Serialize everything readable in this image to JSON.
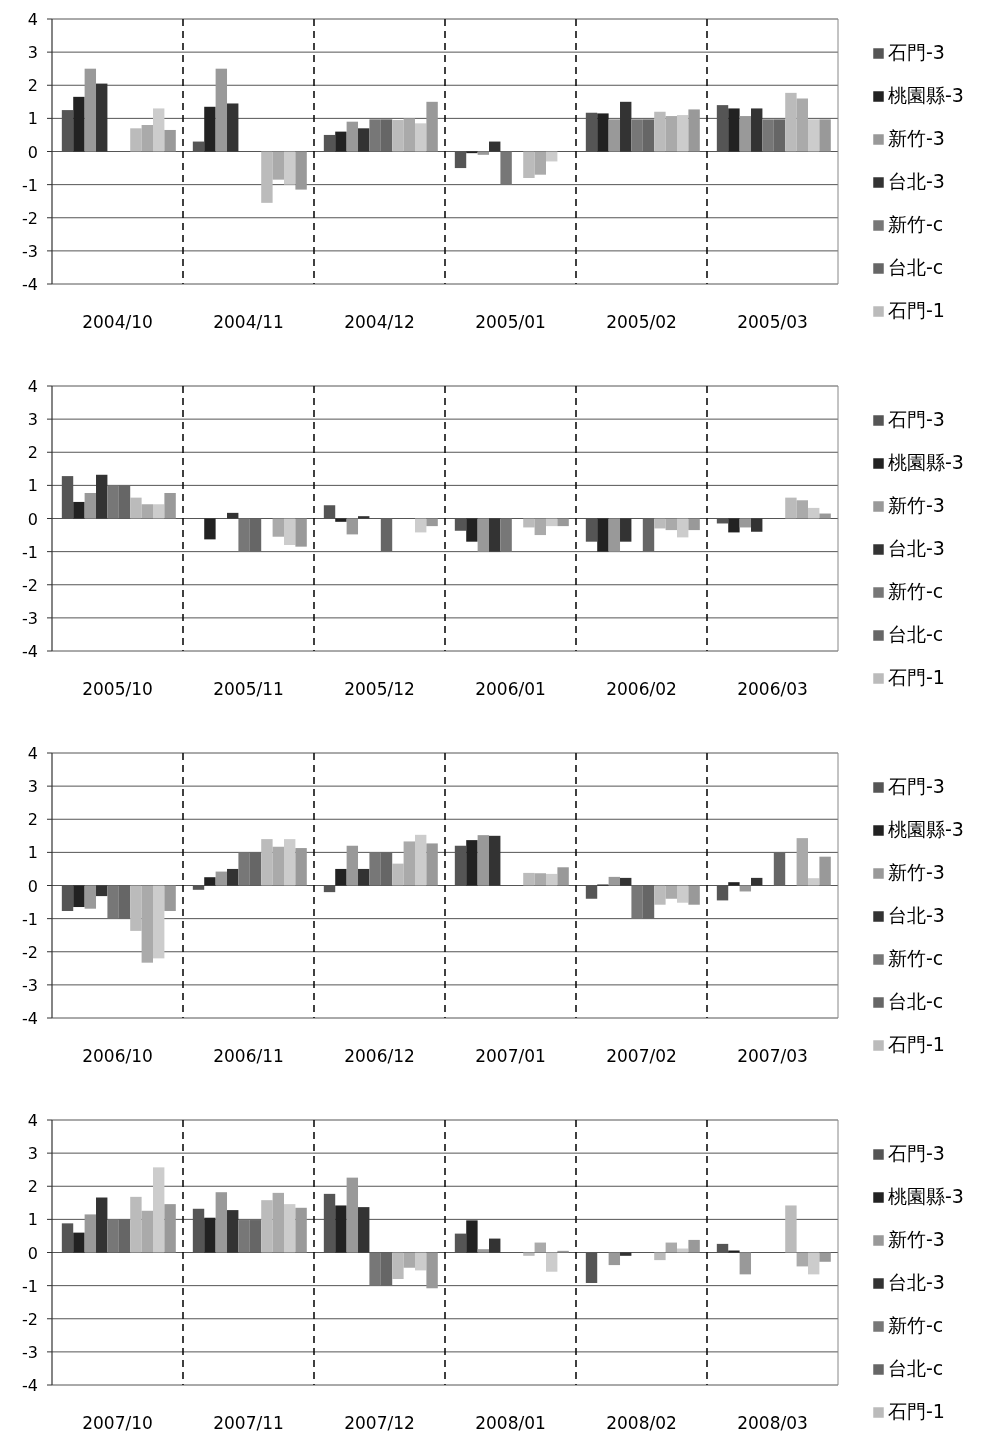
{
  "chart_data": [
    {
      "type": "bar",
      "categories": [
        "2004/10",
        "2004/11",
        "2004/12",
        "2005/01",
        "2005/02",
        "2005/03"
      ],
      "ylim": [
        -4,
        4
      ],
      "yticks": [
        -4,
        -3,
        -2,
        -1,
        0,
        1,
        2,
        3,
        4
      ],
      "grid": true,
      "legend": "right",
      "series": [
        {
          "name": "石門-3",
          "color": "#555555",
          "values": [
            1.25,
            0.3,
            0.5,
            -0.5,
            1.17,
            1.4
          ]
        },
        {
          "name": "桃園縣-3",
          "color": "#222222",
          "values": [
            1.65,
            1.35,
            0.6,
            -0.05,
            1.15,
            1.3
          ]
        },
        {
          "name": "新竹-3",
          "color": "#999999",
          "values": [
            2.5,
            2.5,
            0.9,
            -0.1,
            0.97,
            1.07
          ]
        },
        {
          "name": "台北-3",
          "color": "#333333",
          "values": [
            2.05,
            1.45,
            0.7,
            0.3,
            1.5,
            1.3
          ]
        },
        {
          "name": "新竹-c",
          "color": "#777777",
          "values": [
            0,
            0,
            0.97,
            -1.0,
            0.97,
            0.97
          ]
        },
        {
          "name": "台北-c",
          "color": "#666666",
          "values": [
            0,
            0,
            0.97,
            0,
            0.97,
            0.97
          ]
        },
        {
          "name": "石門-1",
          "color": "#bbbbbb",
          "values": [
            0.7,
            -1.55,
            0.95,
            -0.8,
            1.2,
            1.77
          ]
        },
        {
          "color": "#aaaaaa",
          "values": [
            0.8,
            -0.85,
            1.0,
            -0.7,
            1.07,
            1.6
          ]
        },
        {
          "color": "#cccccc",
          "values": [
            1.3,
            -1.0,
            0.85,
            -0.3,
            1.1,
            0.97
          ]
        },
        {
          "color": "#999999",
          "values": [
            0.65,
            -1.15,
            1.5,
            0,
            1.27,
            0.97
          ]
        }
      ]
    },
    {
      "type": "bar",
      "categories": [
        "2005/10",
        "2005/11",
        "2005/12",
        "2006/01",
        "2006/02",
        "2006/03"
      ],
      "ylim": [
        -4,
        4
      ],
      "yticks": [
        -4,
        -3,
        -2,
        -1,
        0,
        1,
        2,
        3,
        4
      ],
      "grid": true,
      "legend": "right",
      "series": [
        {
          "name": "石門-3",
          "color": "#555555",
          "values": [
            1.28,
            0,
            0.4,
            -0.37,
            -0.7,
            -0.15
          ]
        },
        {
          "name": "桃園縣-3",
          "color": "#222222",
          "values": [
            0.5,
            -0.63,
            -0.1,
            -0.7,
            -1.0,
            -0.42
          ]
        },
        {
          "name": "新竹-3",
          "color": "#999999",
          "values": [
            0.77,
            0,
            -0.48,
            -1.0,
            -1.0,
            -0.27
          ]
        },
        {
          "name": "台北-3",
          "color": "#333333",
          "values": [
            1.32,
            0.17,
            0.07,
            -1.0,
            -0.7,
            -0.4
          ]
        },
        {
          "name": "新竹-c",
          "color": "#777777",
          "values": [
            1.0,
            -1.0,
            0,
            -1.0,
            0,
            0
          ]
        },
        {
          "name": "台北-c",
          "color": "#666666",
          "values": [
            1.0,
            -1.0,
            -1.0,
            0,
            -1.0,
            0
          ]
        },
        {
          "name": "石門-1",
          "color": "#bbbbbb",
          "values": [
            0.63,
            null,
            null,
            -0.27,
            -0.3,
            0.63
          ]
        },
        {
          "color": "#aaaaaa",
          "values": [
            0.43,
            -0.55,
            0,
            -0.5,
            -0.35,
            0.55
          ]
        },
        {
          "color": "#cccccc",
          "values": [
            0.43,
            -0.8,
            -0.42,
            -0.23,
            -0.57,
            0.32
          ]
        },
        {
          "color": "#999999",
          "values": [
            0.77,
            -0.85,
            -0.23,
            -0.23,
            -0.35,
            0.15
          ]
        }
      ]
    },
    {
      "type": "bar",
      "categories": [
        "2006/10",
        "2006/11",
        "2006/12",
        "2007/01",
        "2007/02",
        "2007/03"
      ],
      "ylim": [
        -4,
        4
      ],
      "yticks": [
        -4,
        -3,
        -2,
        -1,
        0,
        1,
        2,
        3,
        4
      ],
      "grid": true,
      "legend": "right",
      "series": [
        {
          "name": "石門-3",
          "color": "#555555",
          "values": [
            -0.77,
            -0.13,
            -0.2,
            1.2,
            -0.4,
            -0.45
          ]
        },
        {
          "name": "桃園縣-3",
          "color": "#222222",
          "values": [
            -0.65,
            0.25,
            0.5,
            1.37,
            0.03,
            0.1
          ]
        },
        {
          "name": "新竹-3",
          "color": "#999999",
          "values": [
            -0.7,
            0.42,
            1.2,
            1.52,
            0.26,
            -0.18
          ]
        },
        {
          "name": "台北-3",
          "color": "#333333",
          "values": [
            -0.32,
            0.5,
            0.5,
            1.5,
            0.23,
            0.23
          ]
        },
        {
          "name": "新竹-c",
          "color": "#777777",
          "values": [
            -1.0,
            1.0,
            1.0,
            0,
            -1.0,
            0
          ]
        },
        {
          "name": "台北-c",
          "color": "#666666",
          "values": [
            -1.0,
            1.0,
            1.0,
            0,
            -1.0,
            1.0
          ]
        },
        {
          "name": "石門-1",
          "color": "#bbbbbb",
          "values": [
            -1.37,
            1.4,
            0.66,
            0.38,
            -0.58,
            0
          ]
        },
        {
          "color": "#aaaaaa",
          "values": [
            -2.33,
            1.17,
            1.33,
            0.37,
            -0.4,
            1.43
          ]
        },
        {
          "color": "#cccccc",
          "values": [
            -2.2,
            1.4,
            1.53,
            0.35,
            -0.52,
            0.22
          ]
        },
        {
          "color": "#999999",
          "values": [
            -0.77,
            1.13,
            1.27,
            0.55,
            -0.58,
            0.87
          ]
        }
      ]
    },
    {
      "type": "bar",
      "categories": [
        "2007/10",
        "2007/11",
        "2007/12",
        "2008/01",
        "2008/02",
        "2008/03"
      ],
      "ylim": [
        -4,
        4
      ],
      "yticks": [
        -4,
        -3,
        -2,
        -1,
        0,
        1,
        2,
        3,
        4
      ],
      "grid": true,
      "legend": "right",
      "series": [
        {
          "name": "石門-3",
          "color": "#555555",
          "values": [
            0.88,
            1.32,
            1.77,
            0.57,
            -0.92,
            0.26
          ]
        },
        {
          "name": "桃園縣-3",
          "color": "#222222",
          "values": [
            0.6,
            1.05,
            1.42,
            0.97,
            0,
            0.06
          ]
        },
        {
          "name": "新竹-3",
          "color": "#999999",
          "values": [
            1.15,
            1.82,
            2.26,
            0.1,
            -0.38,
            -0.66
          ]
        },
        {
          "name": "台北-3",
          "color": "#333333",
          "values": [
            1.66,
            1.28,
            1.37,
            0.42,
            -0.1,
            null
          ]
        },
        {
          "name": "新竹-c",
          "color": "#777777",
          "values": [
            1.0,
            0.98,
            -1.0,
            0,
            0,
            0
          ]
        },
        {
          "name": "台北-c",
          "color": "#666666",
          "values": [
            1.0,
            0.98,
            -1.0,
            0,
            0,
            0
          ]
        },
        {
          "name": "石門-1",
          "color": "#bbbbbb",
          "values": [
            1.68,
            1.58,
            -0.8,
            -0.1,
            -0.23,
            1.42
          ]
        },
        {
          "color": "#aaaaaa",
          "values": [
            1.26,
            1.8,
            -0.46,
            0.3,
            0.3,
            -0.42
          ]
        },
        {
          "color": "#cccccc",
          "values": [
            2.57,
            1.46,
            -0.54,
            -0.58,
            0.12,
            -0.66
          ]
        },
        {
          "color": "#999999",
          "values": [
            1.46,
            1.35,
            -1.08,
            0.05,
            0.38,
            -0.28
          ]
        }
      ]
    }
  ]
}
